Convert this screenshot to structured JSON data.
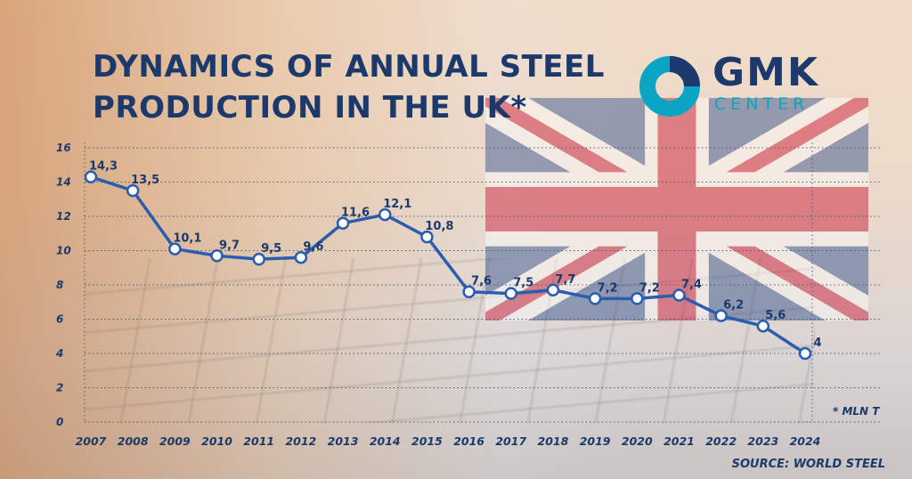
{
  "header": {
    "title": "DYNAMICS OF ANNUAL STEEL\nPRODUCTION IN THE UK*"
  },
  "logo": {
    "line1": "GMK",
    "line2": "CENTER",
    "ring_color": "#0aa4c4",
    "text_color": "#1b3a6b"
  },
  "footer": {
    "unit_note": "* MLN T",
    "source": "SOURCE: WORLD STEEL"
  },
  "colors": {
    "line": "#2a5db0",
    "text": "#1b3a6b",
    "grid": "#4a5a78"
  },
  "chart_data": {
    "type": "line",
    "title": "DYNAMICS OF ANNUAL STEEL PRODUCTION IN THE UK*",
    "xlabel": "",
    "ylabel": "",
    "ylim": [
      0,
      16
    ],
    "yticks": [
      "0",
      "2",
      "4",
      "6",
      "8",
      "10",
      "12",
      "14",
      "16"
    ],
    "grid": "horizontal dotted",
    "categories": [
      "2007",
      "2008",
      "2009",
      "2010",
      "2011",
      "2012",
      "2013",
      "2014",
      "2015",
      "2016",
      "2017",
      "2018",
      "2019",
      "2020",
      "2021",
      "2022",
      "2023",
      "2024"
    ],
    "series": [
      {
        "values": [
          14.3,
          13.5,
          10.1,
          9.7,
          9.5,
          9.6,
          11.6,
          12.1,
          10.8,
          7.6,
          7.5,
          7.7,
          7.2,
          7.2,
          7.4,
          6.2,
          5.6,
          4
        ],
        "labels": [
          "14,3",
          "13,5",
          "10,1",
          "9,7",
          "9,5",
          "9,6",
          "11,6",
          "12,1",
          "10,8",
          "7,6",
          "7,5",
          "7,7",
          "7,2",
          "7,2",
          "7,4",
          "6,2",
          "5,6",
          "4"
        ]
      }
    ]
  }
}
